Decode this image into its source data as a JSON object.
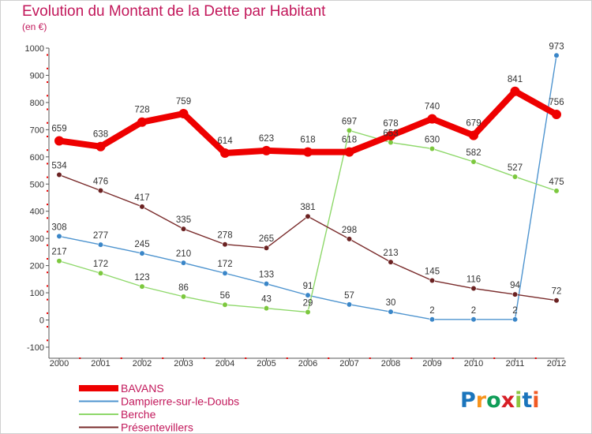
{
  "title": "Evolution du Montant de la Dette par Habitant",
  "subtitle": "(en €)",
  "logo": {
    "text": "Proxiti",
    "colors": [
      "#1b75bc",
      "#f7941d",
      "#0f9d58",
      "#d71f26",
      "#8dc63f",
      "#1b75bc",
      "#f15a24"
    ]
  },
  "chart_data": {
    "type": "line",
    "title": "Evolution du Montant de la Dette par Habitant",
    "subtitle": "(en €)",
    "xlabel": "",
    "ylabel": "",
    "x": [
      "2000",
      "2001",
      "2002",
      "2003",
      "2004",
      "2005",
      "2006",
      "2007",
      "2008",
      "2009",
      "2010",
      "2011",
      "2012"
    ],
    "ylim": [
      -100,
      1000
    ],
    "yticks": [
      -100,
      0,
      100,
      200,
      300,
      400,
      500,
      600,
      700,
      800,
      900,
      1000
    ],
    "grid": false,
    "legend_position": "bottom-left",
    "series": [
      {
        "name": "BAVANS",
        "color": "#ee0000",
        "emphasis": true,
        "values": [
          659,
          638,
          728,
          759,
          614,
          623,
          618,
          618,
          678,
          740,
          679,
          841,
          756
        ],
        "labels": [
          "659",
          "638",
          "728",
          "759",
          "614",
          "623",
          "618",
          "618",
          "678",
          "740",
          "679",
          "841",
          "756"
        ]
      },
      {
        "name": "Dampierre-sur-le-Doubs",
        "color": "#4e94cf",
        "point_color": "#3a86c8",
        "values": [
          308,
          277,
          245,
          210,
          172,
          133,
          91,
          57,
          30,
          2,
          2,
          2,
          973
        ],
        "labels": [
          "308",
          "277",
          "245",
          "210",
          "172",
          "133",
          "91",
          "57",
          "30",
          "2",
          "2",
          "2",
          "973"
        ]
      },
      {
        "name": "Berche",
        "color": "#8ed86a",
        "point_color": "#7cc83e",
        "values": [
          217,
          172,
          123,
          86,
          56,
          43,
          29,
          697,
          653,
          630,
          582,
          527,
          475
        ],
        "labels": [
          "217",
          "172",
          "123",
          "86",
          "56",
          "43",
          "29",
          "697",
          "653",
          "630",
          "582",
          "527",
          "475"
        ]
      },
      {
        "name": "Présentevillers",
        "color": "#7a2c2c",
        "point_color": "#6b2222",
        "values": [
          534,
          476,
          417,
          335,
          278,
          265,
          381,
          298,
          213,
          145,
          116,
          94,
          72
        ],
        "labels": [
          "534",
          "476",
          "417",
          "335",
          "278",
          "265",
          "381",
          "298",
          "213",
          "145",
          "116",
          "94",
          "72"
        ]
      }
    ]
  }
}
